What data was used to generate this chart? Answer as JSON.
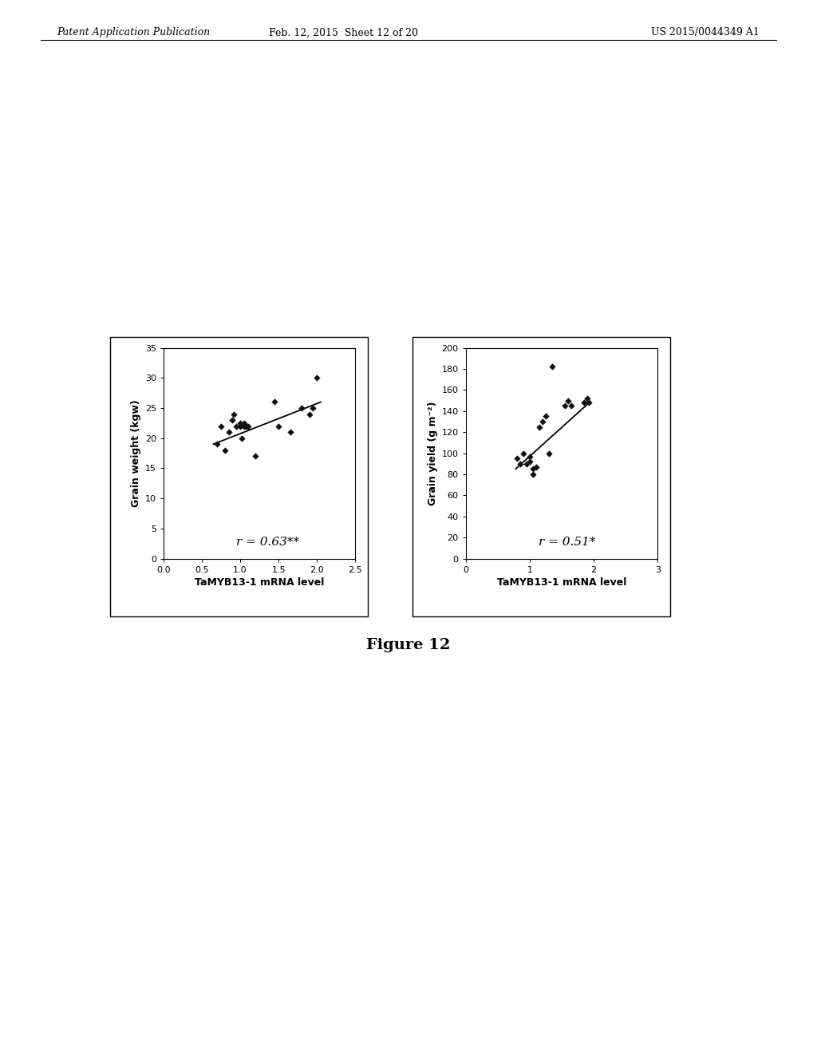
{
  "header_left": "Patent Application Publication",
  "header_mid": "Feb. 12, 2015  Sheet 12 of 20",
  "header_right": "US 2015/0044349 A1",
  "figure_caption": "Figure 12",
  "plot1": {
    "xlabel": "TaMYB13-1 mRNA level",
    "ylabel": "Grain weight (kgw)",
    "xlim": [
      0,
      2.5
    ],
    "ylim": [
      0,
      35
    ],
    "xticks": [
      0,
      0.5,
      1,
      1.5,
      2,
      2.5
    ],
    "yticks": [
      0,
      5,
      10,
      15,
      20,
      25,
      30,
      35
    ],
    "annotation": "r = 0.63**",
    "data_x": [
      0.7,
      0.75,
      0.8,
      0.85,
      0.9,
      0.92,
      0.95,
      1.0,
      1.0,
      1.02,
      1.05,
      1.05,
      1.08,
      1.1,
      1.2,
      1.45,
      1.5,
      1.65,
      1.8,
      1.9,
      1.95,
      2.0
    ],
    "data_y": [
      19,
      22,
      18,
      21,
      23,
      24,
      22,
      22.5,
      22,
      20,
      22,
      22.5,
      22,
      22,
      17,
      26,
      22,
      21,
      25,
      24,
      25,
      30
    ],
    "trendline_x": [
      0.65,
      2.05
    ],
    "trendline_y": [
      19.0,
      26.0
    ]
  },
  "plot2": {
    "xlabel": "TaMYB13-1 mRNA level",
    "ylabel": "Grain yield (g m⁻²)",
    "xlim": [
      0,
      3
    ],
    "ylim": [
      0,
      200
    ],
    "xticks": [
      0,
      1,
      2,
      3
    ],
    "yticks": [
      0,
      20,
      40,
      60,
      80,
      100,
      120,
      140,
      160,
      180,
      200
    ],
    "annotation": "r = 0.51*",
    "data_x": [
      0.8,
      0.85,
      0.9,
      0.95,
      1.0,
      1.0,
      1.05,
      1.05,
      1.1,
      1.15,
      1.2,
      1.25,
      1.3,
      1.35,
      1.55,
      1.6,
      1.65,
      1.85,
      1.9,
      1.92
    ],
    "data_y": [
      95,
      90,
      100,
      90,
      92,
      97,
      85,
      80,
      87,
      125,
      130,
      135,
      100,
      182,
      145,
      150,
      145,
      148,
      152,
      148
    ],
    "trendline_x": [
      0.78,
      1.93
    ],
    "trendline_y": [
      85,
      148
    ]
  },
  "bg_color": "#ffffff",
  "plot_bg_color": "#ffffff",
  "marker_color": "#111111",
  "line_color": "#000000",
  "font_size_header": 9,
  "font_size_label": 9,
  "font_size_tick": 8,
  "font_size_annot": 11,
  "font_size_caption": 14
}
